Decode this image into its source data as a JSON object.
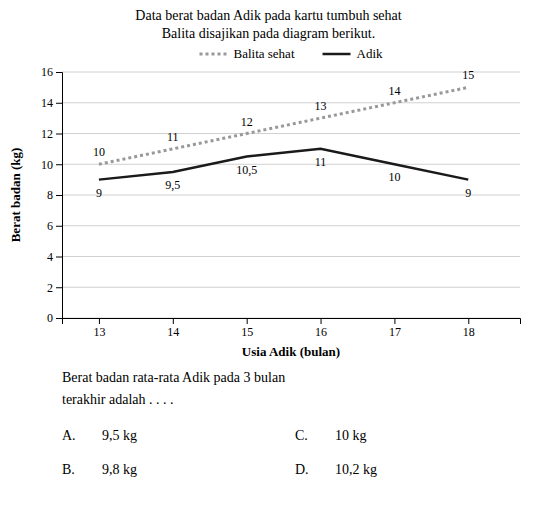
{
  "chart_data": {
    "type": "line",
    "title": "Data berat badan Adik pada kartu tumbuh sehat",
    "subtitle": "Balita disajikan pada diagram berikut.",
    "x_label": "Usia Adik (bulan)",
    "y_label": "Berat badan (kg)",
    "x": [
      13,
      14,
      15,
      16,
      17,
      18
    ],
    "series": [
      {
        "name": "Balita sehat",
        "color": "#999999",
        "line_style": "dotted",
        "values": [
          10,
          11,
          12,
          13,
          14,
          15
        ]
      },
      {
        "name": "Adik",
        "color": "#1a1a1a",
        "line_style": "solid",
        "values": [
          9,
          9.5,
          10.5,
          11,
          10,
          9
        ],
        "value_labels": [
          "9",
          "9,5",
          "10,5",
          "11",
          "10",
          "9"
        ]
      }
    ],
    "xlim": [
      12.5,
      18.7
    ],
    "xticks": [
      13,
      14,
      15,
      16,
      17,
      18
    ],
    "ylim": [
      0,
      16
    ],
    "yticks": [
      0,
      2,
      4,
      6,
      8,
      10,
      12,
      14,
      16
    ],
    "grid": true,
    "legend": "top",
    "data_labels": true,
    "annotations": [
      "Berat badan rata-rata Adik pada 3 bulan\nterakhir adalah . . . .",
      "A.",
      "9,5 kg",
      "C.",
      "10 kg",
      "B.",
      "9,8 kg",
      "D.",
      "10,2 kg"
    ]
  }
}
